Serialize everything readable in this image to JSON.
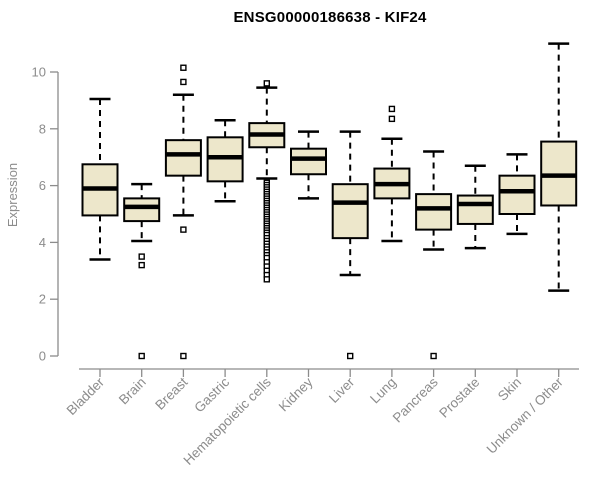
{
  "title": "ENSG00000186638 - KIF24",
  "chart_data": {
    "type": "boxplot",
    "title": "ENSG00000186638 - KIF24",
    "xlabel": "",
    "ylabel": "Expression",
    "ylim": [
      0,
      11
    ],
    "yticks": [
      0,
      2,
      4,
      6,
      8,
      10
    ],
    "grid": false,
    "legend": false,
    "categories": [
      "Bladder",
      "Brain",
      "Breast",
      "Gastric",
      "Hematopoietic cells",
      "Kidney",
      "Liver",
      "Lung",
      "Pancreas",
      "Prostate",
      "Skin",
      "Unknown / Other"
    ],
    "series": [
      {
        "category": "Bladder",
        "slug": "bladder",
        "whisker_low": 3.4,
        "q1": 4.95,
        "median": 5.9,
        "q3": 6.75,
        "whisker_high": 9.05,
        "outliers": []
      },
      {
        "category": "Brain",
        "slug": "brain",
        "whisker_low": 4.05,
        "q1": 4.75,
        "median": 5.25,
        "q3": 5.55,
        "whisker_high": 6.05,
        "outliers": [
          3.5,
          3.2,
          0
        ]
      },
      {
        "category": "Breast",
        "slug": "breast",
        "whisker_low": 4.95,
        "q1": 6.35,
        "median": 7.1,
        "q3": 7.6,
        "whisker_high": 9.2,
        "outliers": [
          10.15,
          9.65,
          4.45,
          0
        ]
      },
      {
        "category": "Gastric",
        "slug": "gastric",
        "whisker_low": 5.45,
        "q1": 6.15,
        "median": 7.0,
        "q3": 7.7,
        "whisker_high": 8.3,
        "outliers": []
      },
      {
        "category": "Hematopoietic cells",
        "slug": "hematopoietic-cells",
        "whisker_low": 6.25,
        "q1": 7.35,
        "median": 7.8,
        "q3": 8.2,
        "whisker_high": 9.45,
        "outliers": [
          9.6,
          6.1,
          6.02,
          5.94,
          5.86,
          5.78,
          5.7,
          5.62,
          5.54,
          5.46,
          5.38,
          5.3,
          5.22,
          5.14,
          5.06,
          4.98,
          4.9,
          4.82,
          4.74,
          4.66,
          4.58,
          4.5,
          4.42,
          4.34,
          4.26,
          4.15,
          4.05,
          3.95,
          3.85,
          3.75,
          3.65,
          3.55,
          3.45,
          3.3,
          3.15,
          3.0,
          2.85,
          2.7
        ]
      },
      {
        "category": "Kidney",
        "slug": "kidney",
        "whisker_low": 5.55,
        "q1": 6.4,
        "median": 6.95,
        "q3": 7.3,
        "whisker_high": 7.9,
        "outliers": []
      },
      {
        "category": "Liver",
        "slug": "liver",
        "whisker_low": 2.85,
        "q1": 4.15,
        "median": 5.4,
        "q3": 6.05,
        "whisker_high": 7.9,
        "outliers": [
          0
        ]
      },
      {
        "category": "Lung",
        "slug": "lung",
        "whisker_low": 4.05,
        "q1": 5.55,
        "median": 6.05,
        "q3": 6.6,
        "whisker_high": 7.65,
        "outliers": [
          8.7,
          8.35
        ]
      },
      {
        "category": "Pancreas",
        "slug": "pancreas",
        "whisker_low": 3.75,
        "q1": 4.45,
        "median": 5.2,
        "q3": 5.7,
        "whisker_high": 7.2,
        "outliers": [
          0
        ]
      },
      {
        "category": "Prostate",
        "slug": "prostate",
        "whisker_low": 3.8,
        "q1": 4.65,
        "median": 5.35,
        "q3": 5.65,
        "whisker_high": 6.7,
        "outliers": []
      },
      {
        "category": "Skin",
        "slug": "skin",
        "whisker_low": 4.3,
        "q1": 5.0,
        "median": 5.8,
        "q3": 6.35,
        "whisker_high": 7.1,
        "outliers": []
      },
      {
        "category": "Unknown / Other",
        "slug": "unknown-other",
        "whisker_low": 2.3,
        "q1": 5.3,
        "median": 6.35,
        "q3": 7.55,
        "whisker_high": 11.0,
        "outliers": []
      }
    ],
    "style": {
      "box_fill": "#EDE7CB",
      "box_stroke": "#000000",
      "median_color": "#000000",
      "whisker_color": "#000000",
      "outlier_fill": "#FFFFFF",
      "outlier_stroke": "#000000",
      "axis_color": "#8C8C8C",
      "tick_label_color": "#8C8C8C",
      "title_color": "#000000",
      "background": "#FFFFFF"
    }
  }
}
